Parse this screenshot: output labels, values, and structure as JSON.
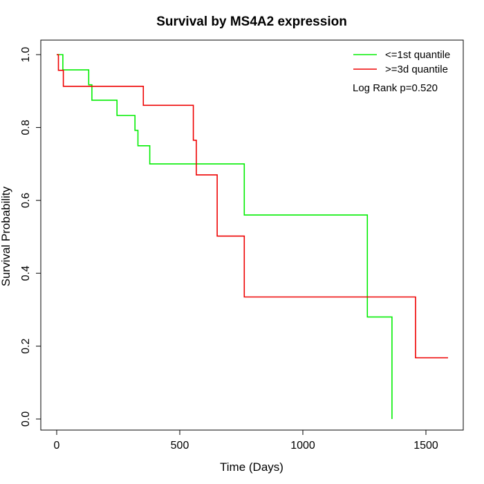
{
  "chart_data": {
    "type": "line",
    "title": "Survival by MS4A2 expression",
    "xlabel": "Time (Days)",
    "ylabel": "Survival Probability",
    "xlim": [
      0,
      1650
    ],
    "ylim": [
      0,
      1.0
    ],
    "x_ticks": [
      0,
      500,
      1000,
      1500
    ],
    "y_ticks": [
      0.0,
      0.2,
      0.4,
      0.6,
      0.8,
      1.0
    ],
    "x_tick_labels": [
      "0",
      "500",
      "1000",
      "1500"
    ],
    "y_tick_labels": [
      "0.0",
      "0.2",
      "0.4",
      "0.6",
      "0.8",
      "1.0"
    ],
    "grid": false,
    "legend_position": "top-right",
    "annotation": "Log Rank p=0.520",
    "series": [
      {
        "name": "<=1st quantile",
        "color": "#00ee00",
        "step_points": [
          [
            0,
            1.0
          ],
          [
            25,
            1.0
          ],
          [
            25,
            0.958
          ],
          [
            130,
            0.958
          ],
          [
            130,
            0.917
          ],
          [
            143,
            0.917
          ],
          [
            143,
            0.875
          ],
          [
            245,
            0.875
          ],
          [
            245,
            0.833
          ],
          [
            318,
            0.833
          ],
          [
            318,
            0.792
          ],
          [
            330,
            0.792
          ],
          [
            330,
            0.75
          ],
          [
            378,
            0.75
          ],
          [
            378,
            0.7
          ],
          [
            762,
            0.7
          ],
          [
            762,
            0.56
          ],
          [
            1262,
            0.56
          ],
          [
            1262,
            0.28
          ],
          [
            1362,
            0.28
          ],
          [
            1362,
            0.0
          ]
        ]
      },
      {
        "name": ">=3d quantile",
        "color": "#ee0000",
        "step_points": [
          [
            0,
            1.0
          ],
          [
            7,
            1.0
          ],
          [
            7,
            0.957
          ],
          [
            27,
            0.957
          ],
          [
            27,
            0.913
          ],
          [
            352,
            0.913
          ],
          [
            352,
            0.861
          ],
          [
            555,
            0.861
          ],
          [
            555,
            0.765
          ],
          [
            567,
            0.765
          ],
          [
            567,
            0.67
          ],
          [
            652,
            0.67
          ],
          [
            652,
            0.502
          ],
          [
            762,
            0.502
          ],
          [
            762,
            0.335
          ],
          [
            1458,
            0.335
          ],
          [
            1458,
            0.168
          ],
          [
            1590,
            0.168
          ]
        ]
      }
    ]
  }
}
